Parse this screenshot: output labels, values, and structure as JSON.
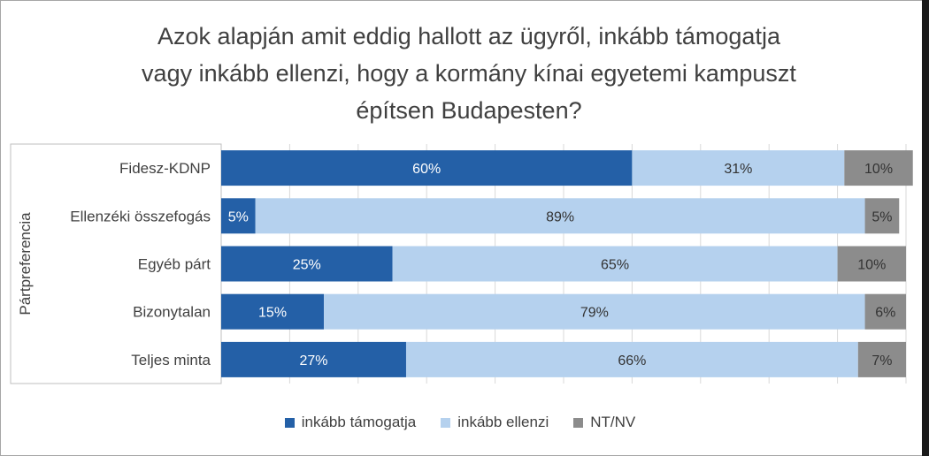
{
  "chart_data": {
    "type": "bar",
    "orientation": "horizontal",
    "stacked": true,
    "percent_stacked": true,
    "title_lines": [
      "Azok alapján amit eddig hallott az ügyről, inkább támogatja",
      "vagy inkább ellenzi, hogy a kormány kínai egyetemi kampuszt",
      "építsen Budapesten?"
    ],
    "ylabel": "Pártpreferencia",
    "xlabel": "",
    "xlim": [
      0,
      100
    ],
    "grid": true,
    "legend_position": "bottom",
    "categories": [
      "Fidesz-KDNP",
      "Ellenzéki összefogás",
      "Egyéb párt",
      "Bizonytalan",
      "Teljes minta"
    ],
    "series": [
      {
        "name": "inkább támogatja",
        "color": "#2460a7",
        "label_color": "#ffffff",
        "values": [
          60,
          5,
          25,
          15,
          27
        ],
        "labels": [
          "60%",
          "5%",
          "25%",
          "15%",
          "27%"
        ]
      },
      {
        "name": "inkább ellenzi",
        "color": "#b5d1ee",
        "label_color": "#333333",
        "values": [
          31,
          89,
          65,
          79,
          66
        ],
        "labels": [
          "31%",
          "89%",
          "65%",
          "79%",
          "66%"
        ]
      },
      {
        "name": "NT/NV",
        "color": "#8c8c8c",
        "label_color": "#333333",
        "values": [
          10,
          5,
          10,
          6,
          7
        ],
        "labels": [
          "10%",
          "5%",
          "10%",
          "6%",
          "7%"
        ]
      }
    ]
  }
}
